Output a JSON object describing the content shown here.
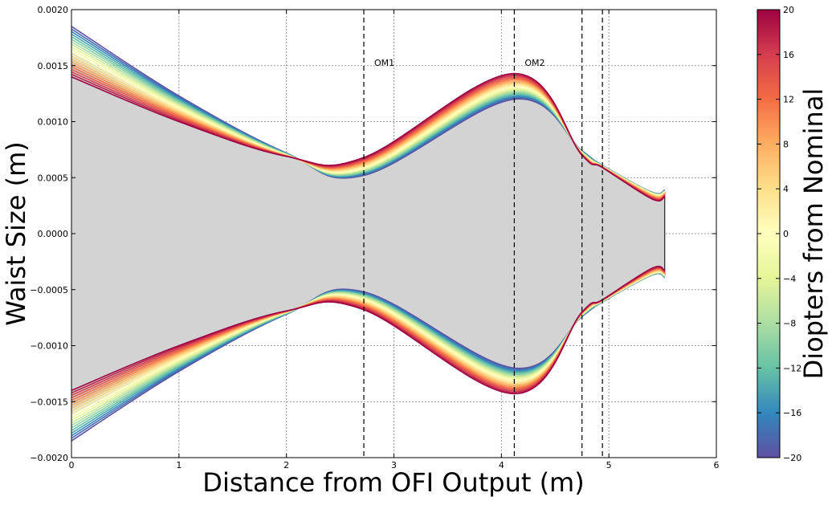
{
  "chart_data": {
    "type": "line",
    "title": "",
    "xlabel": "Distance from OFI Output (m)",
    "ylabel": "Waist Size (m)",
    "xlim": [
      0,
      6
    ],
    "ylim": [
      -0.002,
      0.002
    ],
    "x_ticks": [
      0,
      1,
      2,
      3,
      4,
      5,
      6
    ],
    "x_tick_labels": [
      "0",
      "1",
      "2",
      "3",
      "4",
      "5",
      "6"
    ],
    "y_ticks": [
      0.002,
      0.0015,
      0.001,
      0.0005,
      0.0,
      -0.0005,
      -0.001,
      -0.0015,
      -0.002
    ],
    "y_tick_labels": [
      "0.0020",
      "0.0015",
      "0.0010",
      "0.0005",
      "0.0000",
      "−0.0005",
      "−0.0010",
      "−0.0015",
      "−0.0020"
    ],
    "grid": true,
    "legend": "none",
    "shaded_region": {
      "color": "#d3d3d3",
      "description_series": "nominal beam envelope (± waist)"
    },
    "vertical_markers": [
      {
        "x": 2.72,
        "label": "OM1"
      },
      {
        "x": 4.12,
        "label": "OM2"
      },
      {
        "x": 4.75,
        "label": ""
      },
      {
        "x": 4.94,
        "label": ""
      }
    ],
    "curve_family": {
      "parameter": "Diopters from Nominal",
      "diopter_values": [
        -20,
        -18,
        -16,
        -14,
        -12,
        -10,
        -8,
        -6,
        -4,
        -2,
        0,
        2,
        4,
        6,
        8,
        10,
        12,
        14,
        16,
        18,
        20
      ],
      "symmetric_about_zero": true,
      "x": [
        0,
        1,
        2,
        2.72,
        4.12,
        4.75,
        4.94,
        5.4,
        5.52
      ],
      "waist_at_min_diopter": [
        0.00185,
        0.00123,
        0.00072,
        0.00052,
        0.0012,
        0.00074,
        0.00061,
        0.00037,
        0.00039
      ],
      "waist_at_nominal": [
        0.00162,
        0.00112,
        0.0007,
        0.00059,
        0.00131,
        0.00072,
        0.0006,
        0.00036,
        0.00037
      ],
      "waist_at_max_diopter": [
        0.0014,
        0.001,
        0.00069,
        0.00068,
        0.00143,
        0.0007,
        0.00059,
        0.00031,
        0.00033
      ]
    }
  },
  "colorbar": {
    "label": "Diopters from Nominal",
    "min": -20,
    "max": 20,
    "ticks": [
      20,
      16,
      12,
      8,
      4,
      0,
      -4,
      -8,
      -12,
      -16,
      -20
    ],
    "tick_labels": [
      "20",
      "16",
      "12",
      "8",
      "4",
      "0",
      "−4",
      "−8",
      "−12",
      "−16",
      "−20"
    ],
    "colormap": "Spectral",
    "colormap_stops": [
      "#5e4fa2",
      "#3288bd",
      "#66c2a5",
      "#abdda4",
      "#e6f598",
      "#ffffbf",
      "#fee08b",
      "#fdae61",
      "#f46d43",
      "#d53e4f",
      "#9e0142"
    ]
  }
}
